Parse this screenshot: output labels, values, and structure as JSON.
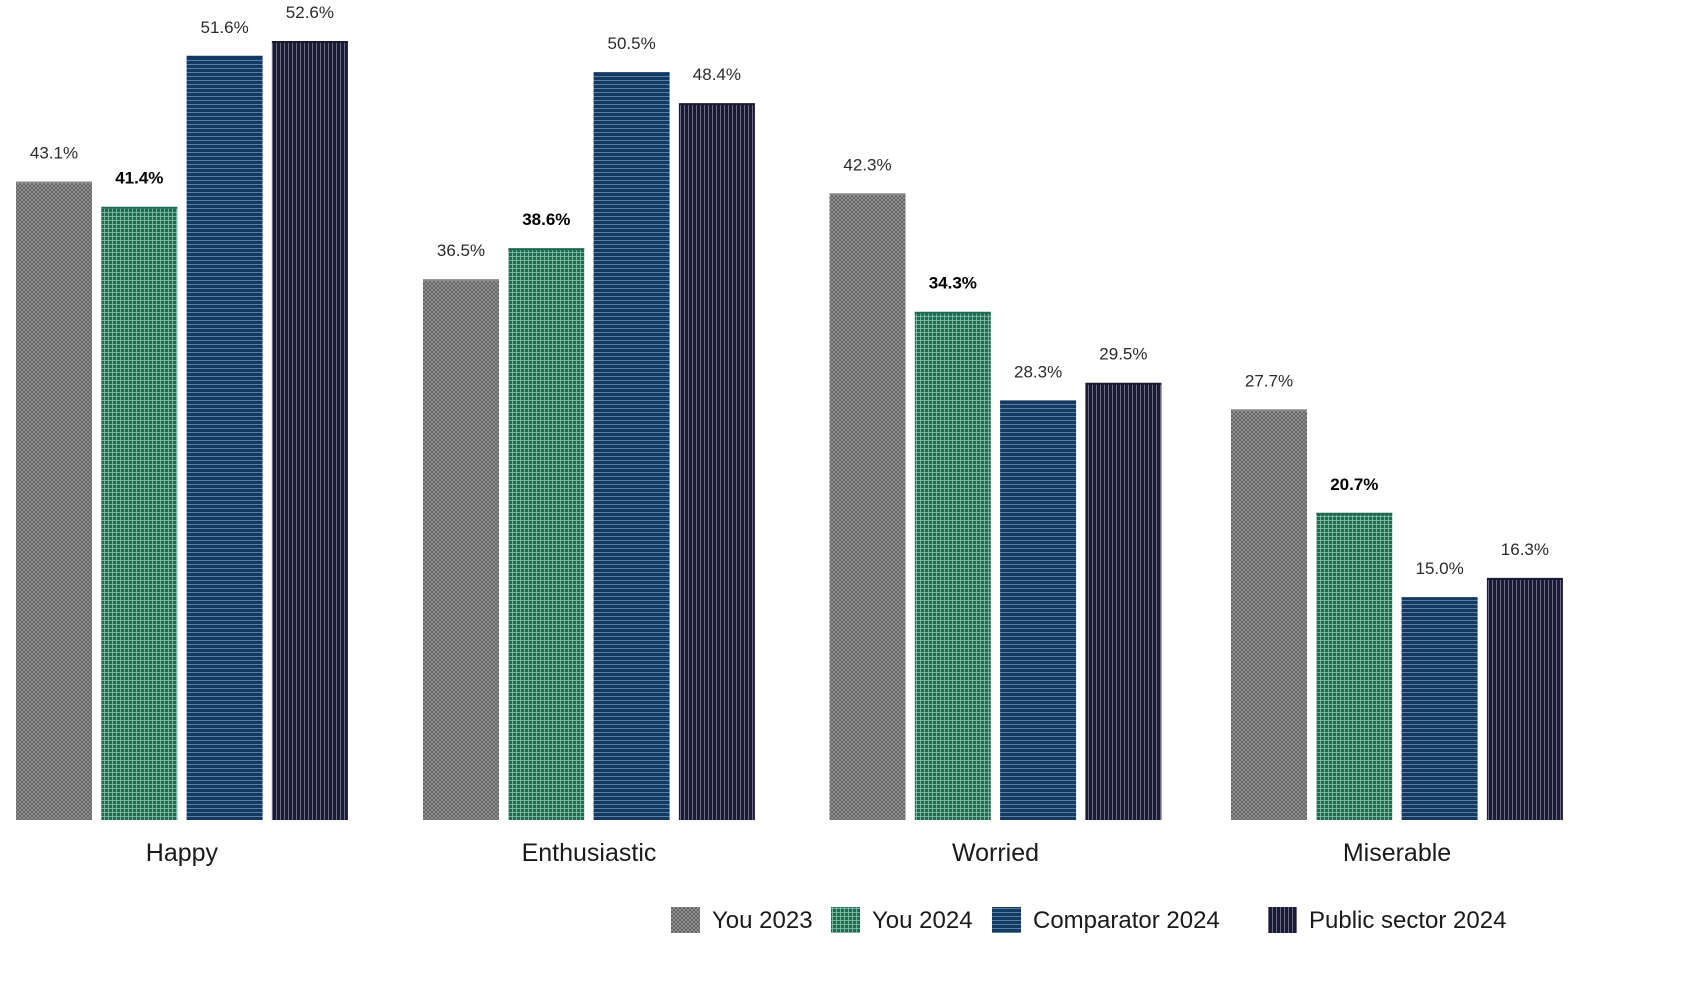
{
  "chart_data": {
    "type": "bar",
    "categories": [
      "Happy",
      "Enthusiastic",
      "Worried",
      "Miserable"
    ],
    "series": [
      {
        "name": "You 2023",
        "values": [
          43.1,
          36.5,
          42.3,
          27.7
        ],
        "labels": [
          "43.1%",
          "36.5%",
          "42.3%",
          "27.7%"
        ],
        "color": "#8a8a8a",
        "pattern": "crosshatch",
        "bold_labels": false
      },
      {
        "name": "You 2024",
        "values": [
          41.4,
          38.6,
          34.3,
          20.7
        ],
        "labels": [
          "41.4%",
          "38.6%",
          "34.3%",
          "20.7%"
        ],
        "color": "#1f6b52",
        "pattern": "grid",
        "bold_labels": true
      },
      {
        "name": "Comparator 2024",
        "values": [
          51.6,
          50.5,
          28.3,
          15.0
        ],
        "labels": [
          "51.6%",
          "50.5%",
          "28.3%",
          "15.0%"
        ],
        "color": "#133a62",
        "pattern": "horizontal-lines",
        "bold_labels": false
      },
      {
        "name": "Public sector 2024",
        "values": [
          52.6,
          48.4,
          29.5,
          16.3
        ],
        "labels": [
          "52.6%",
          "48.4%",
          "29.5%",
          "16.3%"
        ],
        "color": "#1b1a33",
        "pattern": "vertical-lines",
        "bold_labels": false
      }
    ],
    "ylim": [
      0,
      52.6
    ],
    "grid": false,
    "legend_position": "bottom-right",
    "title": "",
    "xlabel": "",
    "ylabel": ""
  }
}
